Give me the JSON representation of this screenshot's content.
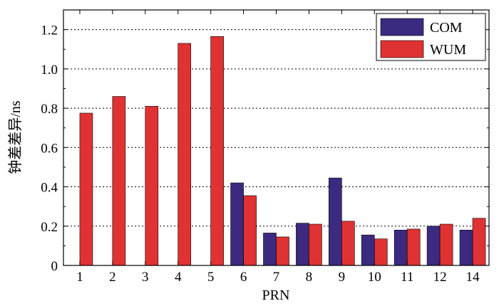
{
  "chart_data": {
    "type": "bar",
    "xlabel": "PRN",
    "ylabel": "钟差差异/ns",
    "ylim": [
      0,
      1.3
    ],
    "yticks": [
      "0",
      "0.2",
      "0.4",
      "0.6",
      "0.8",
      "1.0",
      "1.2"
    ],
    "ytick_values": [
      0,
      0.2,
      0.4,
      0.6,
      0.8,
      1.0,
      1.2
    ],
    "grid": true,
    "legend_position": "top-right",
    "categories": [
      "1",
      "2",
      "3",
      "4",
      "5",
      "6",
      "7",
      "8",
      "9",
      "10",
      "11",
      "12",
      "14"
    ],
    "series": [
      {
        "name": "COM",
        "color": "#3b2a80",
        "values": [
          null,
          null,
          null,
          null,
          null,
          0.42,
          0.165,
          0.215,
          0.445,
          0.155,
          0.18,
          0.2,
          0.18
        ]
      },
      {
        "name": "WUM",
        "color": "#e03232",
        "values": [
          0.775,
          0.86,
          0.81,
          1.13,
          1.165,
          0.355,
          0.145,
          0.21,
          0.225,
          0.135,
          0.185,
          0.21,
          0.24
        ]
      }
    ]
  }
}
